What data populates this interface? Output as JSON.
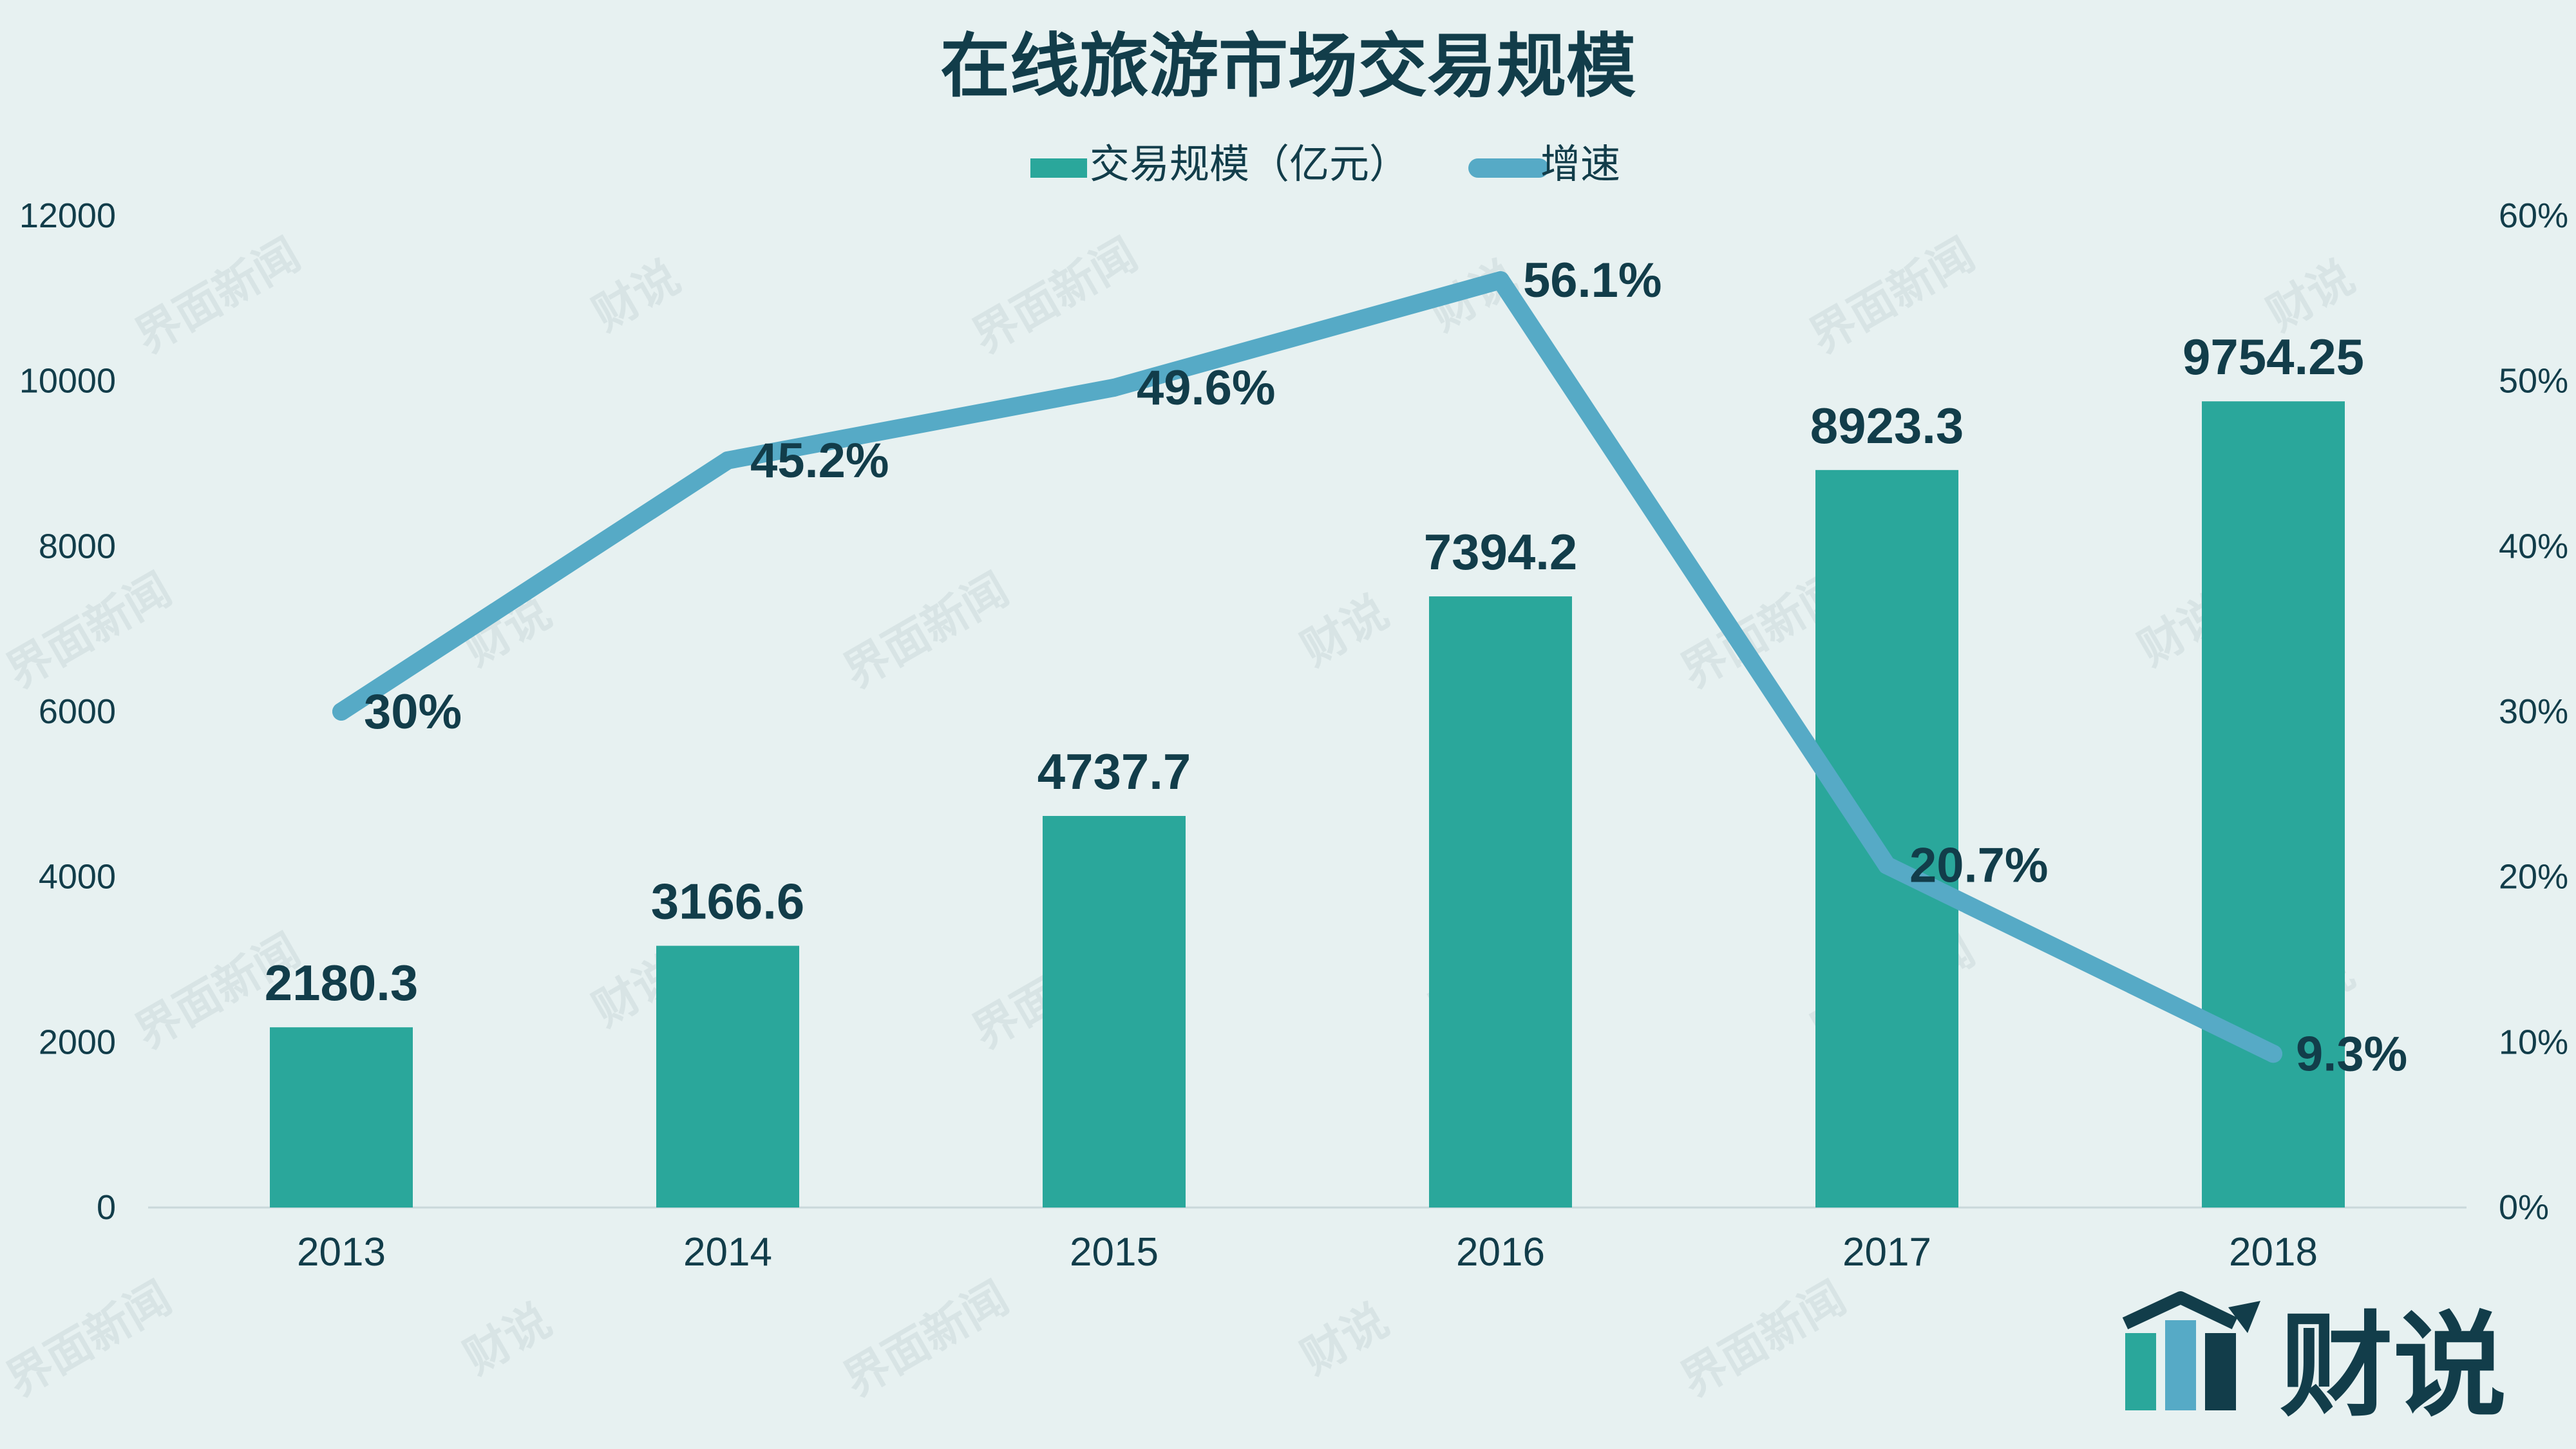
{
  "chart_data": {
    "type": "bar",
    "title": "在线旅游市场交易规模",
    "categories": [
      "2013",
      "2014",
      "2015",
      "2016",
      "2017",
      "2018"
    ],
    "series": [
      {
        "name": "交易规模（亿元）",
        "type": "bar",
        "axis": "left",
        "values": [
          2180.3,
          3166.6,
          4737.7,
          7394.2,
          8923.3,
          9754.25
        ],
        "labels": [
          "2180.3",
          "3166.6",
          "4737.7",
          "7394.2",
          "8923.3",
          "9754.25"
        ]
      },
      {
        "name": "增速",
        "type": "line",
        "axis": "right",
        "values": [
          30,
          45.2,
          49.6,
          56.1,
          20.7,
          9.3
        ],
        "labels": [
          "30%",
          "45.2%",
          "49.6%",
          "56.1%",
          "20.7%",
          "9.3%"
        ]
      }
    ],
    "y_left": {
      "range": [
        0,
        12000
      ],
      "ticks": [
        "0",
        "2000",
        "4000",
        "6000",
        "8000",
        "10000",
        "12000"
      ]
    },
    "y_right": {
      "range": [
        0,
        60
      ],
      "ticks": [
        "0%",
        "10%",
        "20%",
        "30%",
        "40%",
        "50%",
        "60%"
      ]
    },
    "legend_position": "top",
    "grid": false,
    "colors": {
      "bar": "#2aa79b",
      "line": "#56aac6",
      "text": "#123d4a",
      "background": "#e7f1f1"
    }
  },
  "watermark": {
    "brand": "界面新闻",
    "logo": "财说"
  },
  "logo_icon": "bar-chart-arrow-icon"
}
